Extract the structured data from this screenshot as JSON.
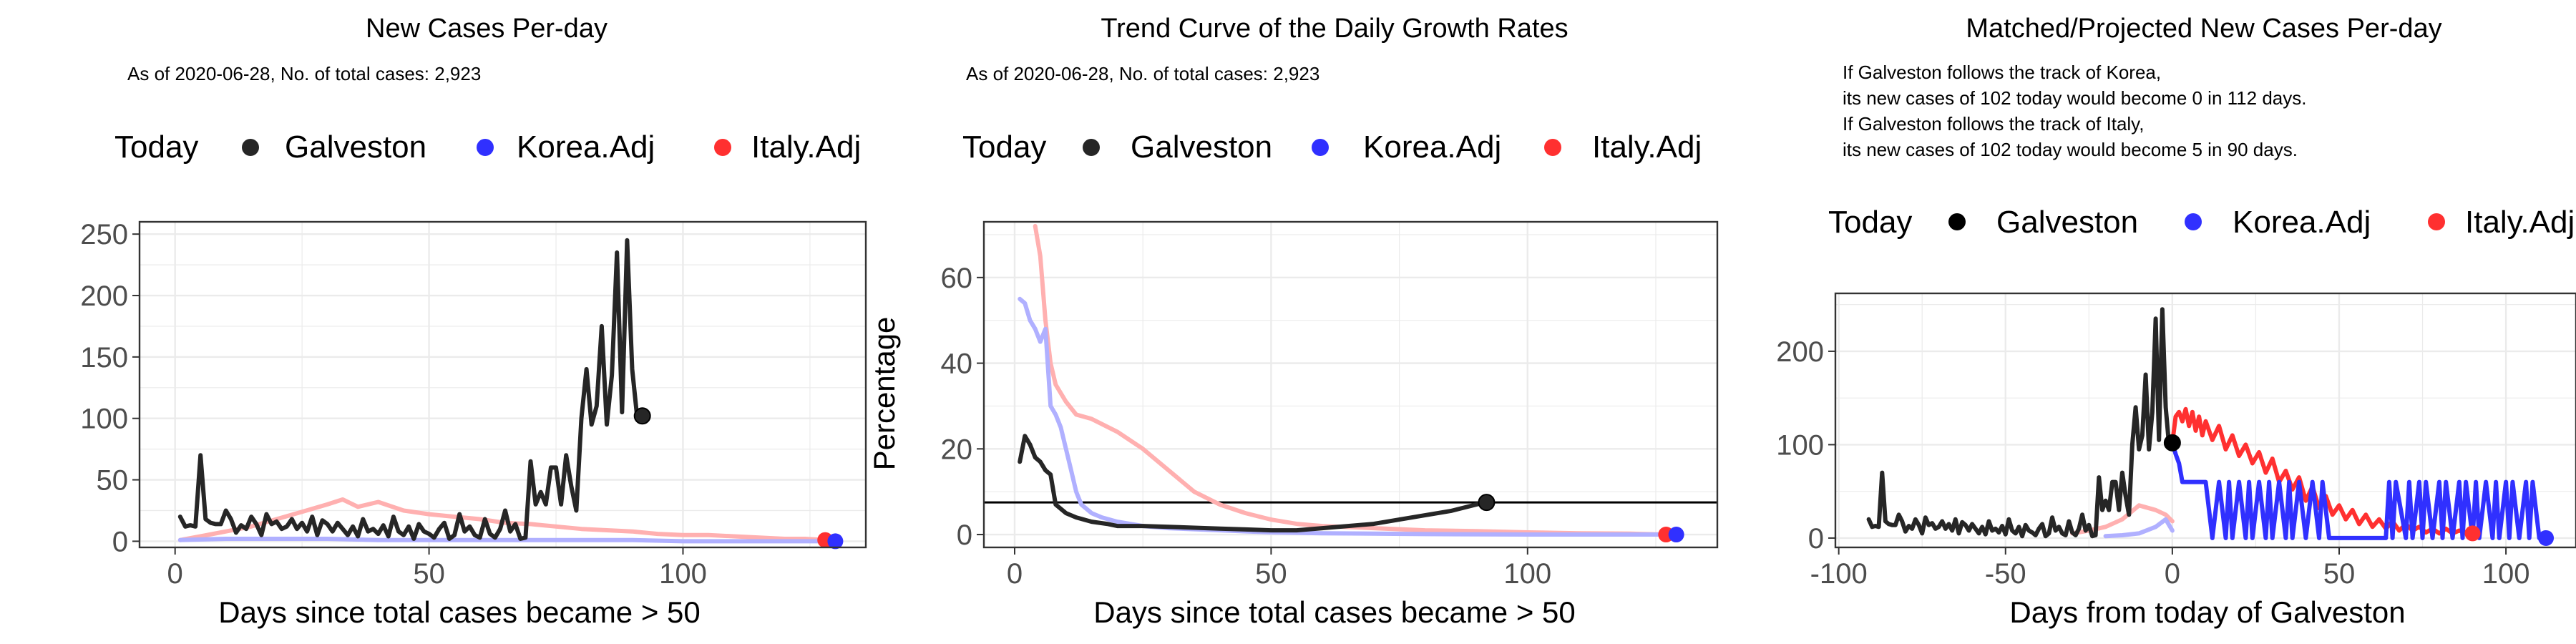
{
  "colors": {
    "galveston": "#262626",
    "korea": "#3030ff",
    "italy": "#ff3030",
    "korea_faint": "#b0b0ff",
    "italy_faint": "#ffb0b0",
    "grid": "#ebebeb",
    "frame": "#333333"
  },
  "legend": {
    "today": "Today",
    "galveston": "Galveston",
    "korea": "Korea.Adj",
    "italy": "Italy.Adj"
  },
  "panels": [
    {
      "title": "New Cases Per-day",
      "note": [
        "As of 2020-06-28, No. of total cases: 2,923"
      ],
      "xlabel": "Days since total cases became > 50",
      "ylabel": ""
    },
    {
      "title": "Trend Curve of the Daily Growth Rates",
      "note": [
        "As of 2020-06-28, No. of total cases: 2,923"
      ],
      "xlabel": "Days since total cases became > 50",
      "ylabel": "Percentage"
    },
    {
      "title": "Matched/Projected New Cases Per-day",
      "note": [
        "If Galveston follows the track of Korea,",
        "its new cases of 102 today would become 0 in 112 days.",
        "If Galveston follows the track of Italy,",
        "its new cases of 102 today would become 5 in 90 days."
      ],
      "xlabel": "Days from today of Galveston",
      "ylabel": ""
    }
  ],
  "chart_data": [
    {
      "type": "line",
      "title": "New Cases Per-day",
      "xlabel": "Days since total cases became > 50",
      "ylabel": "",
      "xlim": [
        -7,
        136
      ],
      "ylim": [
        -5,
        260
      ],
      "xticks": [
        0,
        50,
        100
      ],
      "yticks": [
        0,
        50,
        100,
        150,
        200,
        250
      ],
      "series": [
        {
          "name": "Galveston",
          "color": "#262626",
          "x": [
            1,
            2,
            3,
            4,
            5,
            6,
            7,
            8,
            9,
            10,
            11,
            12,
            13,
            14,
            15,
            16,
            17,
            18,
            19,
            20,
            21,
            22,
            23,
            24,
            25,
            26,
            27,
            28,
            29,
            30,
            31,
            32,
            33,
            34,
            35,
            36,
            37,
            38,
            39,
            40,
            41,
            42,
            43,
            44,
            45,
            46,
            47,
            48,
            49,
            50,
            51,
            52,
            53,
            54,
            55,
            56,
            57,
            58,
            59,
            60,
            61,
            62,
            63,
            64,
            65,
            66,
            67,
            68,
            69,
            70,
            71,
            72,
            73,
            74,
            75,
            76,
            77,
            78,
            79,
            80,
            81,
            82,
            83,
            84,
            85,
            86,
            87,
            88,
            89,
            90,
            91,
            92
          ],
          "y": [
            20,
            12,
            13,
            12,
            70,
            18,
            15,
            14,
            14,
            25,
            18,
            7,
            13,
            10,
            20,
            14,
            5,
            22,
            14,
            16,
            10,
            12,
            18,
            10,
            15,
            8,
            20,
            5,
            17,
            14,
            8,
            15,
            10,
            5,
            12,
            4,
            18,
            8,
            10,
            6,
            13,
            4,
            20,
            8,
            5,
            12,
            2,
            14,
            8,
            6,
            3,
            10,
            15,
            2,
            5,
            22,
            8,
            12,
            5,
            3,
            18,
            6,
            3,
            10,
            25,
            8,
            14,
            2,
            3,
            65,
            30,
            40,
            30,
            60,
            60,
            30,
            70,
            45,
            25,
            100,
            140,
            95,
            110,
            175,
            95,
            135,
            235,
            105,
            245,
            140,
            100,
            102
          ]
        },
        {
          "name": "Korea.Adj",
          "color": "#b0b0ff",
          "x": [
            1,
            10,
            20,
            30,
            40,
            50,
            60,
            70,
            80,
            90,
            100,
            110,
            120,
            129
          ],
          "y": [
            1,
            2,
            2,
            2,
            1,
            1,
            1,
            1,
            1,
            1,
            0,
            0,
            0,
            0
          ]
        },
        {
          "name": "Italy.Adj",
          "color": "#ffb0b0",
          "x": [
            1,
            5,
            10,
            15,
            20,
            25,
            30,
            33,
            36,
            40,
            45,
            50,
            55,
            60,
            65,
            70,
            75,
            80,
            85,
            90,
            95,
            100,
            105,
            110,
            115,
            120,
            124,
            128
          ],
          "y": [
            1,
            4,
            8,
            12,
            18,
            24,
            30,
            34,
            28,
            32,
            25,
            22,
            20,
            18,
            15,
            14,
            12,
            10,
            9,
            8,
            6,
            5,
            5,
            4,
            3,
            2,
            2,
            1
          ]
        }
      ],
      "today_markers": [
        {
          "series": "Galveston",
          "x": 92,
          "y": 102,
          "color": "#262626"
        },
        {
          "series": "Italy.Adj",
          "x": 128,
          "y": 1,
          "color": "#ff3030"
        },
        {
          "series": "Korea.Adj",
          "x": 130,
          "y": 0,
          "color": "#3030ff"
        }
      ],
      "legend": "top"
    },
    {
      "type": "line",
      "title": "Trend Curve of the Daily Growth Rates",
      "xlabel": "Days since total cases became > 50",
      "ylabel": "Percentage",
      "xlim": [
        -6,
        137
      ],
      "ylim": [
        -3,
        73
      ],
      "xticks": [
        0,
        50,
        100
      ],
      "yticks": [
        0,
        20,
        40,
        60
      ],
      "hline": 7.5,
      "series": [
        {
          "name": "Galveston",
          "color": "#262626",
          "x": [
            1,
            2,
            3,
            4,
            5,
            6,
            7,
            8,
            9,
            10,
            12,
            15,
            18,
            20,
            25,
            30,
            35,
            40,
            45,
            50,
            55,
            60,
            65,
            70,
            75,
            80,
            85,
            90,
            92
          ],
          "y": [
            17,
            23,
            21,
            18,
            17,
            15,
            14,
            7,
            6,
            5,
            4,
            3,
            2.5,
            2,
            2,
            1.8,
            1.6,
            1.4,
            1.2,
            1,
            1,
            1.5,
            2,
            2.5,
            3.5,
            4.5,
            5.5,
            7,
            7.5
          ]
        },
        {
          "name": "Korea.Adj",
          "color": "#b0b0ff",
          "x": [
            1,
            2,
            3,
            4,
            5,
            6,
            7,
            8,
            9,
            10,
            11,
            12,
            13,
            15,
            17,
            20,
            25,
            30,
            40,
            50,
            60,
            80,
            100,
            120,
            130
          ],
          "y": [
            55,
            54,
            50,
            48,
            45,
            48,
            30,
            28,
            25,
            20,
            15,
            10,
            7,
            5,
            4,
            3,
            2,
            1.5,
            1,
            0.5,
            0.3,
            0.1,
            0,
            0,
            0
          ]
        },
        {
          "name": "Italy.Adj",
          "color": "#ffb0b0",
          "x": [
            4,
            5,
            6,
            7,
            8,
            10,
            12,
            15,
            20,
            25,
            30,
            35,
            40,
            45,
            50,
            55,
            60,
            70,
            80,
            90,
            100,
            110,
            120,
            127
          ],
          "y": [
            72,
            65,
            50,
            40,
            35,
            31,
            28,
            27,
            24,
            20,
            15,
            10,
            7,
            5,
            3.5,
            2.5,
            2,
            1.5,
            1,
            0.8,
            0.5,
            0.3,
            0.2,
            0
          ]
        }
      ],
      "today_markers": [
        {
          "series": "Galveston",
          "x": 92,
          "y": 7.5,
          "color": "#262626"
        },
        {
          "series": "Italy.Adj",
          "x": 127,
          "y": 0,
          "color": "#ff3030"
        },
        {
          "series": "Korea.Adj",
          "x": 129,
          "y": 0,
          "color": "#3030ff"
        }
      ],
      "legend": "top"
    },
    {
      "type": "line",
      "title": "Matched/Projected New Cases Per-day",
      "xlabel": "Days from today of Galveston",
      "ylabel": "",
      "xlim": [
        -101,
        121
      ],
      "ylim": [
        -10,
        262
      ],
      "xticks": [
        -100,
        -50,
        0,
        50,
        100
      ],
      "yticks": [
        0,
        100,
        200
      ],
      "series": [
        {
          "name": "Galveston",
          "color": "#262626",
          "x": [
            -91,
            -90,
            -89,
            -88,
            -87,
            -86,
            -85,
            -84,
            -83,
            -82,
            -81,
            -80,
            -79,
            -78,
            -77,
            -76,
            -75,
            -74,
            -73,
            -72,
            -71,
            -70,
            -69,
            -68,
            -67,
            -66,
            -65,
            -64,
            -63,
            -62,
            -61,
            -60,
            -59,
            -58,
            -57,
            -56,
            -55,
            -54,
            -53,
            -52,
            -51,
            -50,
            -49,
            -48,
            -47,
            -46,
            -45,
            -44,
            -43,
            -42,
            -41,
            -40,
            -39,
            -38,
            -37,
            -36,
            -35,
            -34,
            -33,
            -32,
            -31,
            -30,
            -29,
            -28,
            -27,
            -26,
            -25,
            -24,
            -23,
            -22,
            -21,
            -20,
            -19,
            -18,
            -17,
            -16,
            -15,
            -14,
            -13,
            -12,
            -11,
            -10,
            -9,
            -8,
            -7,
            -6,
            -5,
            -4,
            -3,
            -2,
            -1,
            0
          ],
          "y": [
            20,
            12,
            13,
            12,
            70,
            18,
            15,
            14,
            14,
            25,
            18,
            7,
            13,
            10,
            20,
            14,
            5,
            22,
            14,
            16,
            10,
            12,
            18,
            10,
            15,
            8,
            20,
            5,
            17,
            14,
            8,
            15,
            10,
            5,
            12,
            4,
            18,
            8,
            10,
            6,
            13,
            4,
            20,
            8,
            5,
            12,
            2,
            14,
            8,
            6,
            3,
            10,
            15,
            2,
            5,
            22,
            8,
            12,
            5,
            3,
            18,
            6,
            3,
            10,
            25,
            8,
            14,
            2,
            3,
            65,
            30,
            40,
            30,
            60,
            60,
            30,
            70,
            45,
            25,
            100,
            140,
            95,
            110,
            175,
            95,
            135,
            235,
            105,
            245,
            140,
            100,
            102
          ]
        },
        {
          "name": "Korea.Adj (matched)",
          "color": "#b0b0ff",
          "x": [
            -20,
            -15,
            -10,
            -5,
            -2,
            0
          ],
          "y": [
            2,
            3,
            5,
            12,
            20,
            8
          ]
        },
        {
          "name": "Italy.Adj (matched)",
          "color": "#ffb0b0",
          "x": [
            -30,
            -25,
            -20,
            -15,
            -10,
            -5,
            -2,
            0
          ],
          "y": [
            5,
            8,
            12,
            20,
            35,
            30,
            25,
            18
          ]
        },
        {
          "name": "Korea.Adj",
          "color": "#3030ff",
          "x": [
            0,
            1,
            2,
            3,
            4,
            5,
            6,
            7,
            8,
            9,
            10,
            12,
            14,
            16,
            17,
            18,
            20,
            22,
            23,
            24,
            26,
            28,
            29,
            30,
            32,
            34,
            35,
            36,
            38,
            40,
            42,
            44,
            45,
            47,
            48,
            50,
            52,
            55,
            60,
            64,
            65,
            66,
            67,
            70,
            71,
            72,
            74,
            75,
            76,
            78,
            80,
            81,
            82,
            84,
            86,
            87,
            88,
            90,
            91,
            92,
            94,
            96,
            97,
            98,
            100,
            101,
            102,
            104,
            106,
            107,
            108,
            110,
            112
          ],
          "y": [
            102,
            90,
            80,
            60,
            60,
            60,
            60,
            60,
            60,
            60,
            60,
            0,
            60,
            0,
            60,
            0,
            60,
            0,
            60,
            0,
            60,
            0,
            60,
            0,
            60,
            0,
            60,
            0,
            60,
            0,
            60,
            0,
            60,
            0,
            0,
            0,
            0,
            0,
            0,
            0,
            60,
            0,
            60,
            0,
            60,
            0,
            60,
            0,
            60,
            0,
            60,
            0,
            60,
            0,
            60,
            0,
            60,
            0,
            60,
            0,
            60,
            0,
            60,
            0,
            60,
            0,
            60,
            0,
            60,
            0,
            60,
            0,
            0
          ]
        },
        {
          "name": "Italy.Adj",
          "color": "#ff3030",
          "x": [
            0,
            1,
            2,
            3,
            4,
            5,
            6,
            7,
            8,
            9,
            10,
            12,
            14,
            16,
            18,
            20,
            22,
            24,
            26,
            28,
            30,
            32,
            34,
            36,
            38,
            40,
            42,
            44,
            46,
            48,
            50,
            52,
            54,
            56,
            58,
            60,
            62,
            64,
            66,
            68,
            70,
            72,
            74,
            76,
            78,
            80,
            82,
            84,
            86,
            88,
            90
          ],
          "y": [
            102,
            130,
            135,
            125,
            138,
            120,
            135,
            115,
            130,
            110,
            125,
            105,
            120,
            95,
            110,
            88,
            100,
            80,
            92,
            70,
            85,
            60,
            72,
            52,
            65,
            40,
            55,
            32,
            45,
            25,
            35,
            20,
            30,
            15,
            25,
            12,
            20,
            10,
            18,
            8,
            15,
            8,
            12,
            6,
            10,
            5,
            10,
            5,
            8,
            6,
            5
          ]
        }
      ],
      "today_markers": [
        {
          "series": "Galveston",
          "x": 0,
          "y": 102,
          "color": "#000000"
        },
        {
          "series": "Italy.Adj",
          "x": 90,
          "y": 5,
          "color": "#ff3030"
        },
        {
          "series": "Korea.Adj",
          "x": 112,
          "y": 0,
          "color": "#3030ff"
        }
      ],
      "legend": "top"
    }
  ]
}
